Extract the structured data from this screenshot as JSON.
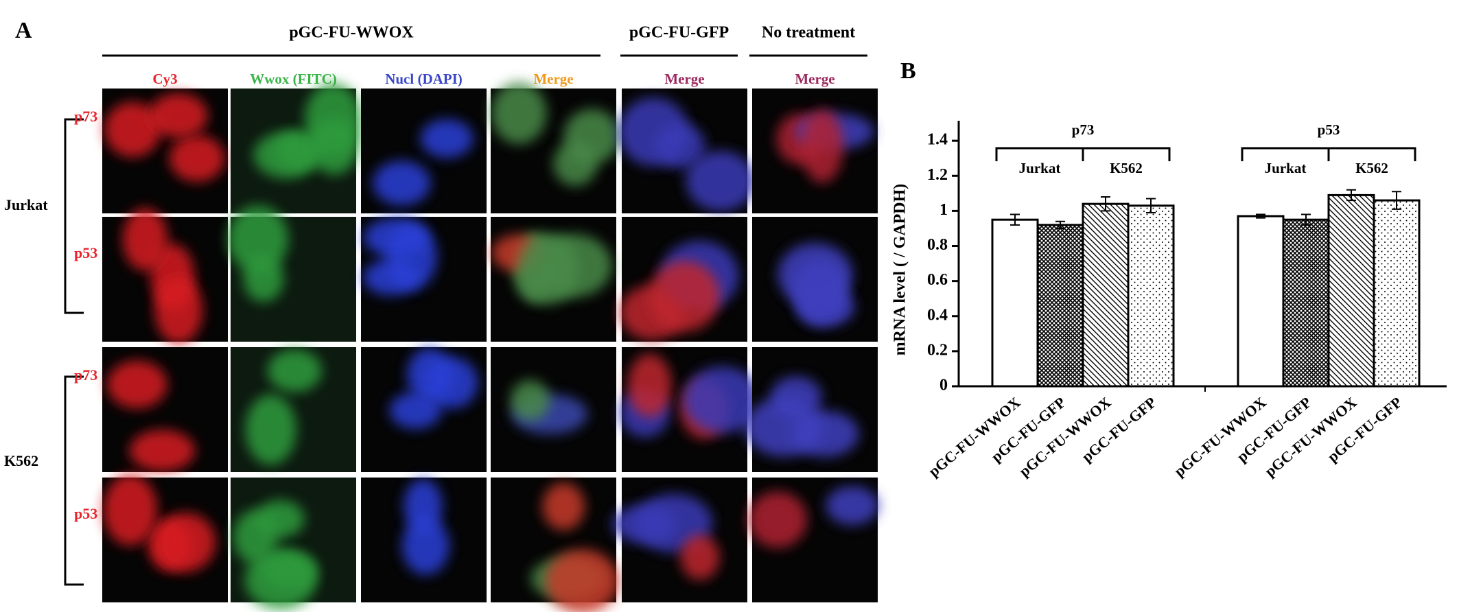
{
  "panel_a": {
    "label": "A",
    "groups": [
      {
        "title": "pGC-FU-WWOX",
        "columns": [
          "Cy3",
          "Wwox (FITC)",
          "Nucl (DAPI)",
          "Merge"
        ]
      },
      {
        "title": "pGC-FU-GFP",
        "columns": [
          "Merge"
        ]
      },
      {
        "title": "No treatment",
        "columns": [
          "Merge"
        ]
      }
    ],
    "rows": [
      {
        "cell_line": "Jurkat",
        "genes": [
          "p73",
          "p53"
        ]
      },
      {
        "cell_line": "K562",
        "genes": [
          "p73",
          "p53"
        ]
      }
    ]
  },
  "chart_data": {
    "type": "bar",
    "label": "B",
    "ylabel": "mRNA level ( / GAPDH)",
    "categories": [
      "pGC-FU-WWOX",
      "pGC-FU-GFP",
      "pGC-FU-WWOX",
      "pGC-FU-GFP",
      "pGC-FU-WWOX",
      "pGC-FU-GFP",
      "pGC-FU-WWOX",
      "pGC-FU-GFP"
    ],
    "values": [
      0.95,
      0.92,
      1.04,
      1.03,
      0.97,
      0.95,
      1.09,
      1.06
    ],
    "errors": [
      0.03,
      0.02,
      0.04,
      0.04,
      0.01,
      0.03,
      0.03,
      0.05
    ],
    "groups": [
      {
        "name": "p73",
        "subgroups": [
          "Jurkat",
          "K562"
        ]
      },
      {
        "name": "p53",
        "subgroups": [
          "Jurkat",
          "K562"
        ]
      }
    ],
    "ylim": [
      0,
      1.5
    ],
    "yticks": [
      0,
      0.2,
      0.4,
      0.6,
      0.8,
      1,
      1.2,
      1.4
    ],
    "color": "#000000"
  }
}
